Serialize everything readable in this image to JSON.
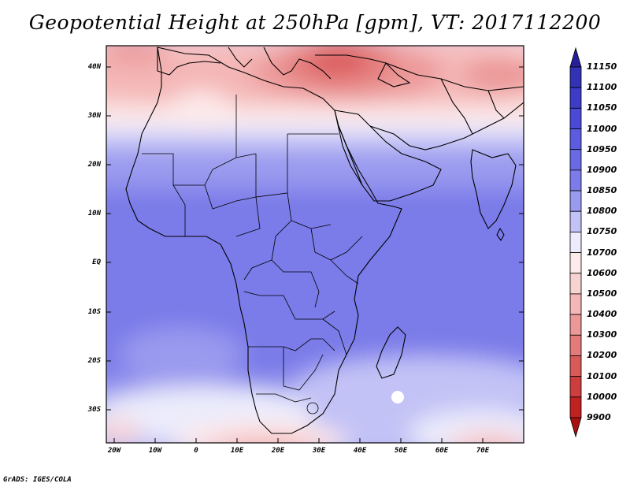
{
  "title": "Geopotential Height at 250hPa [gpm], VT: 2017112200",
  "footer": "GrADS: IGES/COLA",
  "y_ticks": [
    "40N",
    "30N",
    "20N",
    "10N",
    "EQ",
    "10S",
    "20S",
    "30S"
  ],
  "x_ticks": [
    "20W",
    "10W",
    "0",
    "10E",
    "20E",
    "30E",
    "40E",
    "50E",
    "60E",
    "70E"
  ],
  "colorbar": {
    "labels": [
      "11150",
      "11100",
      "11050",
      "11000",
      "10950",
      "10900",
      "10850",
      "10800",
      "10750",
      "10700",
      "10600",
      "10500",
      "10400",
      "10300",
      "10200",
      "10100",
      "10000",
      "9900"
    ],
    "colors": [
      "#23209a",
      "#3232b4",
      "#3c3cc8",
      "#4a4ad6",
      "#5c5ce0",
      "#6a6ae6",
      "#7b7be9",
      "#9a9aef",
      "#c2c2f6",
      "#ececfc",
      "#fdeaea",
      "#f9d2d2",
      "#f4b6b6",
      "#ec9898",
      "#e47a7a",
      "#da5a5a",
      "#cf3e3e",
      "#c02222",
      "#a81010"
    ]
  }
}
